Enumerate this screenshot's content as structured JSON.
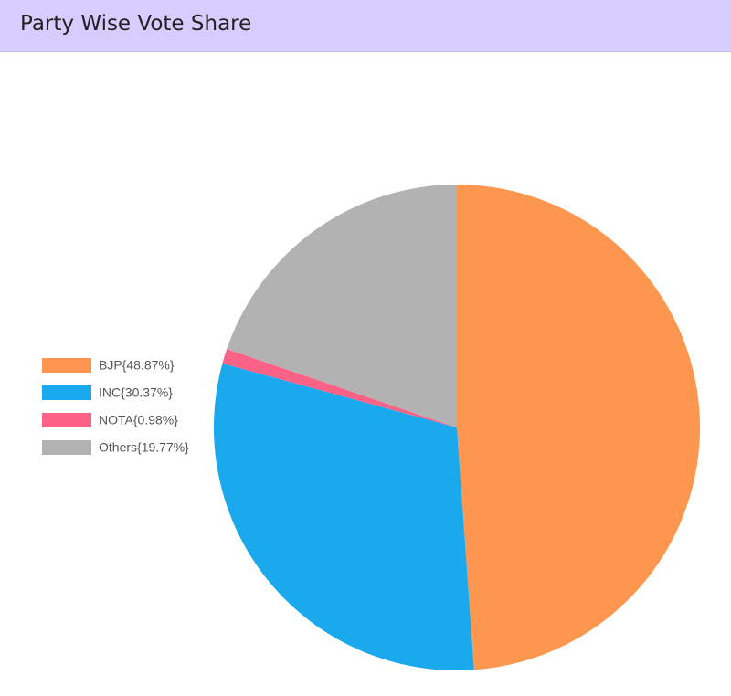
{
  "chart_data": {
    "type": "pie",
    "title": "Party Wise Vote Share",
    "categories": [
      "BJP{48.87%}",
      "INC{30.37%}",
      "NOTA{0.98%}",
      "Others{19.77%}"
    ],
    "values": [
      48.87,
      30.37,
      0.98,
      19.77
    ],
    "colors": [
      "#fd9750",
      "#1aa9ec",
      "#fb6286",
      "#b2b2b2"
    ],
    "legend": "left"
  }
}
